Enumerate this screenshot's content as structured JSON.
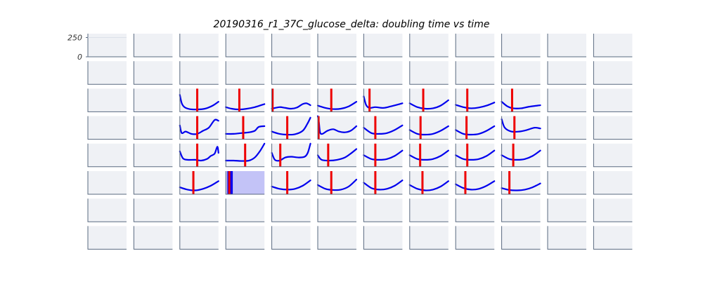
{
  "chart_data": {
    "type": "line",
    "title": "20190316_r1_37C_glucose_delta: doubling time vs time",
    "grid": {
      "rows": 8,
      "cols": 12
    },
    "ylim": [
      0,
      300
    ],
    "yticks": [
      0,
      250
    ],
    "colors": {
      "curve": "#0000ee",
      "marker": "#ee0000",
      "highlight_fill": "#c3c3f7",
      "highlight_bar": "#0000ee",
      "panel_bg": "#eff1f5",
      "axis": "#5a6a80"
    },
    "panels": [
      {
        "row": 2,
        "col": 2,
        "curve": [
          [
            0,
            220
          ],
          [
            0.05,
            110
          ],
          [
            0.12,
            60
          ],
          [
            0.25,
            35
          ],
          [
            0.45,
            30
          ],
          [
            0.65,
            40
          ],
          [
            0.85,
            80
          ],
          [
            1,
            130
          ]
        ],
        "marker": 0.45
      },
      {
        "row": 2,
        "col": 3,
        "curve": [
          [
            0,
            60
          ],
          [
            0.15,
            40
          ],
          [
            0.35,
            30
          ],
          [
            0.55,
            40
          ],
          [
            0.75,
            60
          ],
          [
            1,
            100
          ]
        ],
        "marker": 0.35
      },
      {
        "row": 2,
        "col": 4,
        "curve": [
          [
            0,
            40
          ],
          [
            0.2,
            60
          ],
          [
            0.35,
            50
          ],
          [
            0.5,
            40
          ],
          [
            0.65,
            55
          ],
          [
            0.8,
            100
          ],
          [
            0.9,
            110
          ],
          [
            1,
            85
          ]
        ],
        "marker": 0.02
      },
      {
        "row": 2,
        "col": 5,
        "curve": [
          [
            0,
            80
          ],
          [
            0.2,
            50
          ],
          [
            0.4,
            35
          ],
          [
            0.6,
            40
          ],
          [
            0.8,
            70
          ],
          [
            1,
            130
          ]
        ],
        "marker": 0.35
      },
      {
        "row": 2,
        "col": 6,
        "curve": [
          [
            0,
            200
          ],
          [
            0.06,
            90
          ],
          [
            0.15,
            50
          ],
          [
            0.3,
            60
          ],
          [
            0.5,
            50
          ],
          [
            0.7,
            70
          ],
          [
            1,
            110
          ]
        ],
        "marker": 0.15
      },
      {
        "row": 2,
        "col": 7,
        "curve": [
          [
            0,
            110
          ],
          [
            0.2,
            60
          ],
          [
            0.4,
            40
          ],
          [
            0.6,
            45
          ],
          [
            0.8,
            80
          ],
          [
            1,
            150
          ]
        ],
        "marker": 0.35
      },
      {
        "row": 2,
        "col": 8,
        "curve": [
          [
            0,
            90
          ],
          [
            0.2,
            60
          ],
          [
            0.4,
            45
          ],
          [
            0.6,
            55
          ],
          [
            0.8,
            80
          ],
          [
            1,
            120
          ]
        ],
        "marker": 0.3
      },
      {
        "row": 2,
        "col": 9,
        "curve": [
          [
            0,
            130
          ],
          [
            0.15,
            70
          ],
          [
            0.3,
            45
          ],
          [
            0.5,
            45
          ],
          [
            0.7,
            65
          ],
          [
            1,
            85
          ]
        ],
        "marker": 0.27
      },
      {
        "row": 3,
        "col": 2,
        "curve": [
          [
            0,
            180
          ],
          [
            0.05,
            80
          ],
          [
            0.15,
            100
          ],
          [
            0.3,
            70
          ],
          [
            0.45,
            70
          ],
          [
            0.6,
            110
          ],
          [
            0.75,
            150
          ],
          [
            0.9,
            250
          ],
          [
            1,
            240
          ]
        ],
        "marker": 0.45
      },
      {
        "row": 3,
        "col": 3,
        "curve": [
          [
            0,
            70
          ],
          [
            0.2,
            70
          ],
          [
            0.4,
            80
          ],
          [
            0.6,
            90
          ],
          [
            0.75,
            110
          ],
          [
            0.85,
            160
          ],
          [
            1,
            170
          ]
        ],
        "marker": 0.45
      },
      {
        "row": 3,
        "col": 4,
        "curve": [
          [
            0,
            100
          ],
          [
            0.2,
            70
          ],
          [
            0.4,
            60
          ],
          [
            0.6,
            65
          ],
          [
            0.8,
            110
          ],
          [
            0.92,
            200
          ],
          [
            1,
            280
          ]
        ],
        "marker": 0.4
      },
      {
        "row": 3,
        "col": 5,
        "curve": [
          [
            0,
            300
          ],
          [
            0.03,
            220
          ],
          [
            0.06,
            90
          ],
          [
            0.12,
            70
          ],
          [
            0.25,
            110
          ],
          [
            0.4,
            130
          ],
          [
            0.55,
            100
          ],
          [
            0.7,
            90
          ],
          [
            0.85,
            110
          ],
          [
            1,
            170
          ]
        ],
        "marker": 0.02
      },
      {
        "row": 3,
        "col": 6,
        "curve": [
          [
            0,
            150
          ],
          [
            0.2,
            80
          ],
          [
            0.4,
            70
          ],
          [
            0.6,
            80
          ],
          [
            0.8,
            120
          ],
          [
            1,
            180
          ]
        ],
        "marker": 0.3
      },
      {
        "row": 3,
        "col": 7,
        "curve": [
          [
            0,
            120
          ],
          [
            0.2,
            70
          ],
          [
            0.4,
            60
          ],
          [
            0.6,
            70
          ],
          [
            0.8,
            110
          ],
          [
            1,
            170
          ]
        ],
        "marker": 0.28
      },
      {
        "row": 3,
        "col": 8,
        "curve": [
          [
            0,
            120
          ],
          [
            0.2,
            70
          ],
          [
            0.4,
            60
          ],
          [
            0.6,
            70
          ],
          [
            0.8,
            110
          ],
          [
            1,
            170
          ]
        ],
        "marker": 0.28
      },
      {
        "row": 3,
        "col": 9,
        "curve": [
          [
            0,
            260
          ],
          [
            0.08,
            150
          ],
          [
            0.25,
            100
          ],
          [
            0.45,
            100
          ],
          [
            0.65,
            120
          ],
          [
            0.85,
            150
          ],
          [
            1,
            140
          ]
        ],
        "marker": 0.33
      },
      {
        "row": 4,
        "col": 2,
        "curve": [
          [
            0,
            200
          ],
          [
            0.08,
            110
          ],
          [
            0.2,
            90
          ],
          [
            0.4,
            90
          ],
          [
            0.55,
            80
          ],
          [
            0.7,
            100
          ],
          [
            0.8,
            140
          ],
          [
            0.9,
            170
          ],
          [
            0.97,
            260
          ],
          [
            1,
            180
          ]
        ],
        "marker": 0.45
      },
      {
        "row": 4,
        "col": 3,
        "curve": [
          [
            0,
            80
          ],
          [
            0.2,
            80
          ],
          [
            0.4,
            75
          ],
          [
            0.6,
            80
          ],
          [
            0.75,
            120
          ],
          [
            0.88,
            200
          ],
          [
            1,
            310
          ]
        ],
        "marker": 0.5
      },
      {
        "row": 4,
        "col": 4,
        "curve": [
          [
            0,
            180
          ],
          [
            0.08,
            90
          ],
          [
            0.2,
            80
          ],
          [
            0.35,
            120
          ],
          [
            0.5,
            130
          ],
          [
            0.7,
            120
          ],
          [
            0.85,
            130
          ],
          [
            0.93,
            180
          ],
          [
            1,
            310
          ]
        ],
        "marker": 0.22
      },
      {
        "row": 4,
        "col": 5,
        "curve": [
          [
            0,
            150
          ],
          [
            0.1,
            90
          ],
          [
            0.3,
            80
          ],
          [
            0.5,
            90
          ],
          [
            0.7,
            120
          ],
          [
            0.85,
            170
          ],
          [
            1,
            230
          ]
        ],
        "marker": 0.27
      },
      {
        "row": 4,
        "col": 6,
        "curve": [
          [
            0,
            150
          ],
          [
            0.2,
            100
          ],
          [
            0.4,
            90
          ],
          [
            0.6,
            100
          ],
          [
            0.8,
            140
          ],
          [
            1,
            210
          ]
        ],
        "marker": 0.3
      },
      {
        "row": 4,
        "col": 7,
        "curve": [
          [
            0,
            150
          ],
          [
            0.2,
            100
          ],
          [
            0.4,
            90
          ],
          [
            0.6,
            100
          ],
          [
            0.8,
            140
          ],
          [
            1,
            210
          ]
        ],
        "marker": 0.27
      },
      {
        "row": 4,
        "col": 8,
        "curve": [
          [
            0,
            150
          ],
          [
            0.2,
            100
          ],
          [
            0.4,
            90
          ],
          [
            0.6,
            100
          ],
          [
            0.8,
            140
          ],
          [
            1,
            210
          ]
        ],
        "marker": 0.3
      },
      {
        "row": 4,
        "col": 9,
        "curve": [
          [
            0,
            150
          ],
          [
            0.2,
            100
          ],
          [
            0.4,
            90
          ],
          [
            0.6,
            100
          ],
          [
            0.8,
            140
          ],
          [
            1,
            210
          ]
        ],
        "marker": 0.3
      },
      {
        "row": 5,
        "col": 2,
        "curve": [
          [
            0,
            90
          ],
          [
            0.2,
            60
          ],
          [
            0.4,
            50
          ],
          [
            0.6,
            70
          ],
          [
            0.8,
            110
          ],
          [
            1,
            170
          ]
        ],
        "marker": 0.35
      },
      {
        "row": 5,
        "col": 3,
        "highlight": true,
        "bar": [
          0.04,
          0.18
        ],
        "marker": 0.09
      },
      {
        "row": 5,
        "col": 4,
        "curve": [
          [
            0,
            100
          ],
          [
            0.2,
            70
          ],
          [
            0.4,
            60
          ],
          [
            0.6,
            70
          ],
          [
            0.8,
            110
          ],
          [
            1,
            180
          ]
        ],
        "marker": 0.4
      },
      {
        "row": 5,
        "col": 5,
        "curve": [
          [
            0,
            120
          ],
          [
            0.2,
            70
          ],
          [
            0.4,
            55
          ],
          [
            0.6,
            60
          ],
          [
            0.8,
            100
          ],
          [
            1,
            190
          ]
        ],
        "marker": 0.35
      },
      {
        "row": 5,
        "col": 6,
        "curve": [
          [
            0,
            150
          ],
          [
            0.2,
            80
          ],
          [
            0.4,
            60
          ],
          [
            0.6,
            70
          ],
          [
            0.8,
            110
          ],
          [
            1,
            180
          ]
        ],
        "marker": 0.3
      },
      {
        "row": 5,
        "col": 7,
        "curve": [
          [
            0,
            120
          ],
          [
            0.2,
            70
          ],
          [
            0.4,
            50
          ],
          [
            0.6,
            60
          ],
          [
            0.8,
            100
          ],
          [
            1,
            170
          ]
        ],
        "marker": 0.33
      },
      {
        "row": 5,
        "col": 8,
        "curve": [
          [
            0,
            130
          ],
          [
            0.2,
            80
          ],
          [
            0.4,
            60
          ],
          [
            0.6,
            70
          ],
          [
            0.8,
            110
          ],
          [
            1,
            170
          ]
        ],
        "marker": 0.25
      },
      {
        "row": 5,
        "col": 9,
        "curve": [
          [
            0,
            80
          ],
          [
            0.2,
            55
          ],
          [
            0.4,
            50
          ],
          [
            0.6,
            60
          ],
          [
            0.8,
            90
          ],
          [
            1,
            140
          ]
        ],
        "marker": 0.2
      }
    ]
  }
}
